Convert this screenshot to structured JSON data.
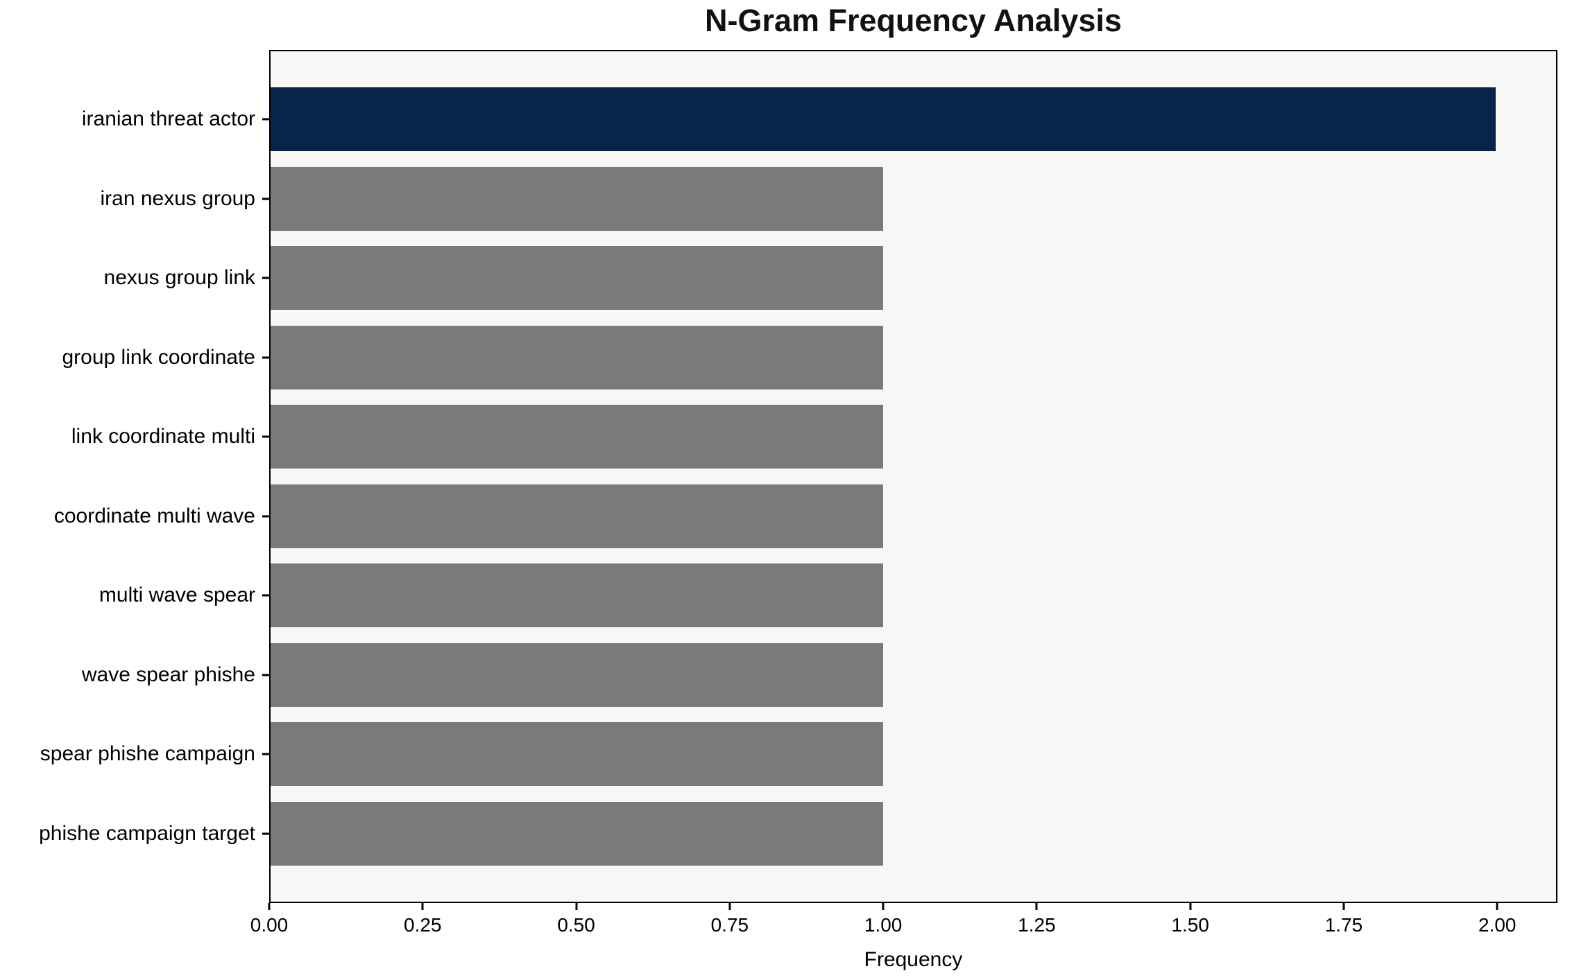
{
  "chart_data": {
    "type": "bar",
    "orientation": "horizontal",
    "title": "N-Gram Frequency Analysis",
    "xlabel": "Frequency",
    "ylabel": "",
    "categories": [
      "iranian threat actor",
      "iran nexus group",
      "nexus group link",
      "group link coordinate",
      "link coordinate multi",
      "coordinate multi wave",
      "multi wave spear",
      "wave spear phishe",
      "spear phishe campaign",
      "phishe campaign target"
    ],
    "values": [
      2,
      1,
      1,
      1,
      1,
      1,
      1,
      1,
      1,
      1
    ],
    "bar_colors": [
      "#07244a",
      "#7a7a78",
      "#7a7a78",
      "#7a7a78",
      "#7a7a78",
      "#7a7a78",
      "#7a7a78",
      "#7a7a78",
      "#7a7a78",
      "#7a7a78"
    ],
    "xlim": [
      0,
      2.098
    ],
    "x_ticks": {
      "values": [
        0,
        0.25,
        0.5,
        0.75,
        1.0,
        1.25,
        1.5,
        1.75,
        2.0
      ],
      "labels": [
        "0.00",
        "0.25",
        "0.50",
        "0.75",
        "1.00",
        "1.25",
        "1.50",
        "1.75",
        "2.00"
      ]
    },
    "grid": false,
    "legend": null,
    "colors": {
      "highlight_bar": "#07244a",
      "default_bar": "#7a7a78",
      "plot_background": "#f7f7f6",
      "figure_background": "#ffffff",
      "axis_border": "#000000",
      "text": "#000000"
    }
  }
}
